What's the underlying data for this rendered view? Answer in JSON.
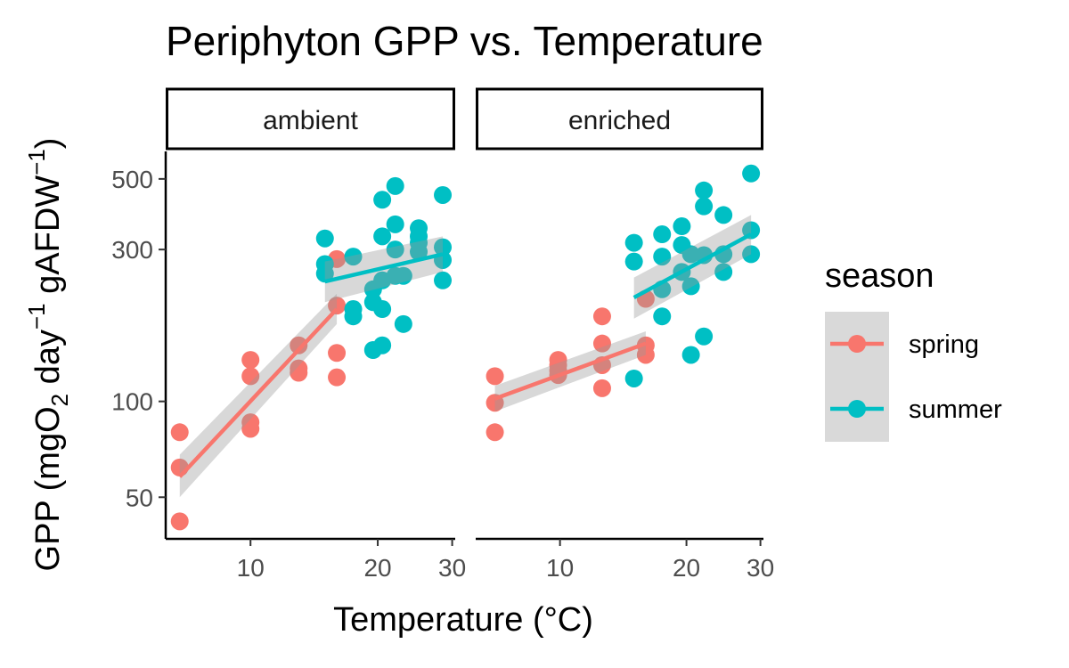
{
  "chart_data": {
    "type": "scatter",
    "title": "Periphyton GPP vs. Temperature",
    "xlabel": "Temperature (°C)",
    "ylabel_parts": {
      "main": "GPP (mgO",
      "sub": "2",
      "mid1": " day",
      "sup1": "−1",
      "mid2": " gAFDW",
      "sup2": "−1",
      "end": ")"
    },
    "x_scale": "log",
    "y_scale": "log",
    "xlim": [
      6.3,
      30.5
    ],
    "ylim": [
      37,
      610
    ],
    "x_ticks": [
      10,
      20,
      30
    ],
    "y_ticks": [
      50,
      100,
      300,
      500
    ],
    "legend": {
      "title": "season",
      "position": "right",
      "entries": [
        {
          "label": "spring",
          "color": "#F8766D"
        },
        {
          "label": "summer",
          "color": "#00BFC4"
        }
      ]
    },
    "facets": [
      {
        "label": "ambient",
        "series": [
          {
            "name": "spring",
            "points": [
              [
                6.8,
                80
              ],
              [
                6.8,
                62
              ],
              [
                6.8,
                42
              ],
              [
                10,
                135
              ],
              [
                10,
                120
              ],
              [
                10,
                86
              ],
              [
                10,
                82
              ],
              [
                13,
                150
              ],
              [
                13,
                127
              ],
              [
                13,
                123
              ],
              [
                16,
                280
              ],
              [
                16,
                200
              ],
              [
                16,
                142
              ],
              [
                16,
                119
              ]
            ],
            "fit": {
              "x": [
                6.8,
                16
              ],
              "y": [
                58,
                195
              ],
              "ci_lo": [
                50,
                175
              ],
              "ci_hi": [
                68,
                218
              ]
            }
          },
          {
            "name": "summer",
            "points": [
              [
                15,
                325
              ],
              [
                15,
                270
              ],
              [
                15,
                252
              ],
              [
                17.5,
                285
              ],
              [
                17.5,
                195
              ],
              [
                17.5,
                185
              ],
              [
                19.5,
                225
              ],
              [
                19.5,
                205
              ],
              [
                19.5,
                145
              ],
              [
                20.5,
                430
              ],
              [
                20.5,
                330
              ],
              [
                20.5,
                240
              ],
              [
                20.5,
                195
              ],
              [
                20.5,
                150
              ],
              [
                22,
                475
              ],
              [
                22,
                360
              ],
              [
                22,
                300
              ],
              [
                22,
                248
              ],
              [
                23,
                248
              ],
              [
                23,
                175
              ],
              [
                25,
                350
              ],
              [
                25,
                330
              ],
              [
                25,
                315
              ],
              [
                25,
                295
              ],
              [
                28.5,
                445
              ],
              [
                28.5,
                305
              ],
              [
                28.5,
                278
              ],
              [
                28.5,
                240
              ]
            ],
            "fit": {
              "x": [
                15,
                28.5
              ],
              "y": [
                238,
                290
              ],
              "ci_lo": [
                205,
                255
              ],
              "ci_hi": [
                275,
                330
              ]
            }
          }
        ]
      },
      {
        "label": "enriched",
        "series": [
          {
            "name": "spring",
            "points": [
              [
                7,
                120
              ],
              [
                7,
                99
              ],
              [
                7,
                80
              ],
              [
                9.9,
                135
              ],
              [
                9.9,
                130
              ],
              [
                9.9,
                125
              ],
              [
                9.9,
                121
              ],
              [
                12.6,
                185
              ],
              [
                12.6,
                152
              ],
              [
                12.6,
                130
              ],
              [
                12.6,
                110
              ],
              [
                16,
                210
              ],
              [
                16,
                150
              ],
              [
                16,
                140
              ]
            ],
            "fit": {
              "x": [
                7,
                16
              ],
              "y": [
                102,
                152
              ],
              "ci_lo": [
                93,
                140
              ],
              "ci_hi": [
                112,
                166
              ]
            }
          },
          {
            "name": "summer",
            "points": [
              [
                15,
                315
              ],
              [
                15,
                275
              ],
              [
                15,
                118
              ],
              [
                17.5,
                335
              ],
              [
                17.5,
                285
              ],
              [
                17.5,
                225
              ],
              [
                17.5,
                185
              ],
              [
                19.5,
                355
              ],
              [
                19.5,
                310
              ],
              [
                19.5,
                255
              ],
              [
                20.5,
                290
              ],
              [
                20.5,
                230
              ],
              [
                20.5,
                140
              ],
              [
                22,
                460
              ],
              [
                22,
                410
              ],
              [
                22,
                288
              ],
              [
                22,
                160
              ],
              [
                24.5,
                385
              ],
              [
                24.5,
                290
              ],
              [
                24.5,
                255
              ],
              [
                28.5,
                520
              ],
              [
                28.5,
                345
              ],
              [
                28.5,
                290
              ]
            ],
            "fit": {
              "x": [
                15,
                28.5
              ],
              "y": [
                212,
                335
              ],
              "ci_lo": [
                182,
                290
              ],
              "ci_hi": [
                245,
                385
              ]
            }
          }
        ]
      }
    ]
  }
}
